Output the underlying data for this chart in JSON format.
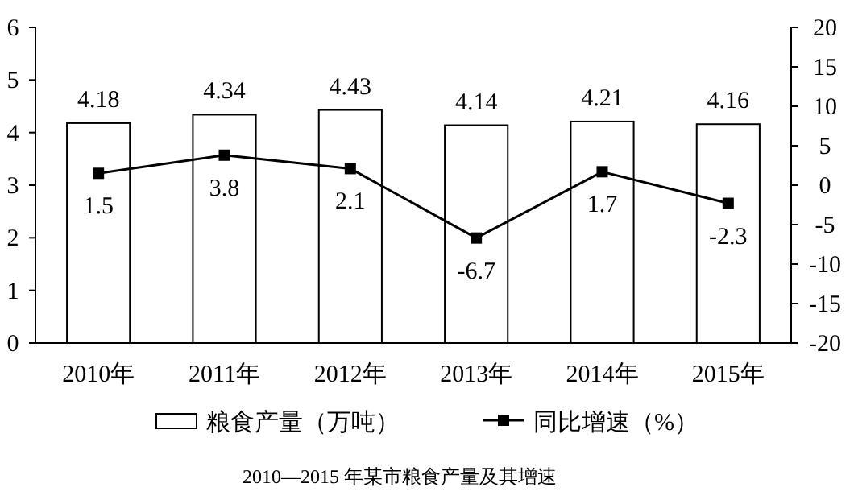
{
  "chart_data": {
    "type": "bar",
    "title": "2010—2015 年某市粮食产量及其增速",
    "categories": [
      "2010年",
      "2011年",
      "2012年",
      "2013年",
      "2014年",
      "2015年"
    ],
    "series": [
      {
        "name": "粮食产量（万吨）",
        "color": "#ffffff",
        "values": [
          4.18,
          4.34,
          4.43,
          4.14,
          4.21,
          4.16
        ]
      },
      {
        "name": "同比增速（%）",
        "type": "line",
        "axis": "y2",
        "color": "#000000",
        "values": [
          1.5,
          3.8,
          2.1,
          -6.7,
          1.7,
          -2.3
        ]
      }
    ],
    "ylim": [
      0,
      6
    ],
    "yticks": [
      0,
      1,
      2,
      3,
      4,
      5,
      6
    ],
    "y2lim": [
      -20,
      20
    ],
    "y2ticks": [
      -20,
      -15,
      -10,
      -5,
      0,
      5,
      10,
      15,
      20
    ],
    "marker": "square",
    "line_style": "solid",
    "data_labels": true,
    "legend": "bottom",
    "grid": false
  }
}
